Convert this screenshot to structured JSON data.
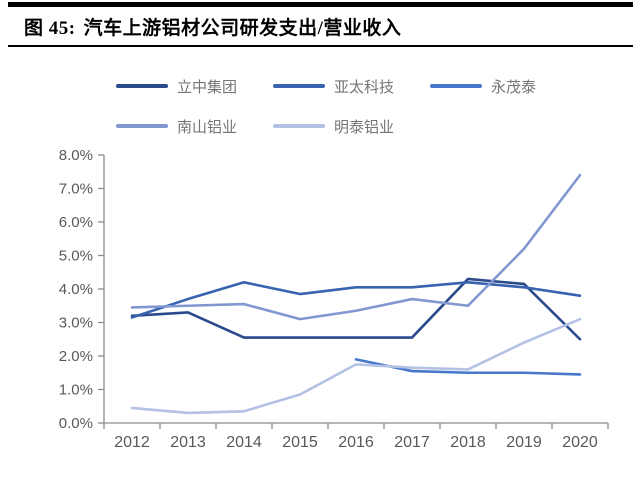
{
  "header": {
    "figure_label": "图 45:",
    "title": "汽车上游铝材公司研发支出/营业收入"
  },
  "chart_data": {
    "type": "line",
    "title": "汽车上游铝材公司研发支出/营业收入",
    "x": [
      "2012",
      "2013",
      "2014",
      "2015",
      "2016",
      "2017",
      "2018",
      "2019",
      "2020"
    ],
    "series": [
      {
        "name": "立中集团",
        "color": "#2b4a8b",
        "values": [
          3.2,
          3.3,
          2.55,
          2.55,
          2.55,
          2.55,
          4.3,
          4.15,
          2.5
        ]
      },
      {
        "name": "亚太科技",
        "color": "#3763af",
        "values": [
          3.15,
          3.7,
          4.2,
          3.85,
          4.05,
          4.05,
          4.2,
          4.05,
          3.8
        ]
      },
      {
        "name": "永茂泰",
        "color": "#4777cc",
        "values": [
          null,
          null,
          null,
          null,
          1.9,
          1.55,
          1.5,
          1.5,
          1.45
        ]
      },
      {
        "name": "南山铝业",
        "color": "#8097d0",
        "values": [
          3.45,
          3.5,
          3.55,
          3.1,
          3.35,
          3.7,
          3.5,
          5.2,
          7.4
        ]
      },
      {
        "name": "明泰铝业",
        "color": "#b3c1e4",
        "values": [
          0.45,
          0.3,
          0.35,
          0.85,
          1.75,
          1.65,
          1.6,
          2.4,
          3.1
        ]
      }
    ],
    "ylim": [
      0,
      8
    ],
    "ytick_labels": [
      "0.0%",
      "1.0%",
      "2.0%",
      "3.0%",
      "4.0%",
      "5.0%",
      "6.0%",
      "7.0%",
      "8.0%"
    ],
    "xlabel": "",
    "ylabel": "",
    "grid": false,
    "legend_position": "top-left, two rows"
  },
  "style": {
    "axis_color": "#8c8c8c",
    "tick_label_color": "#595959",
    "legend_text_color": "#757575",
    "rule_color": "#000000"
  }
}
